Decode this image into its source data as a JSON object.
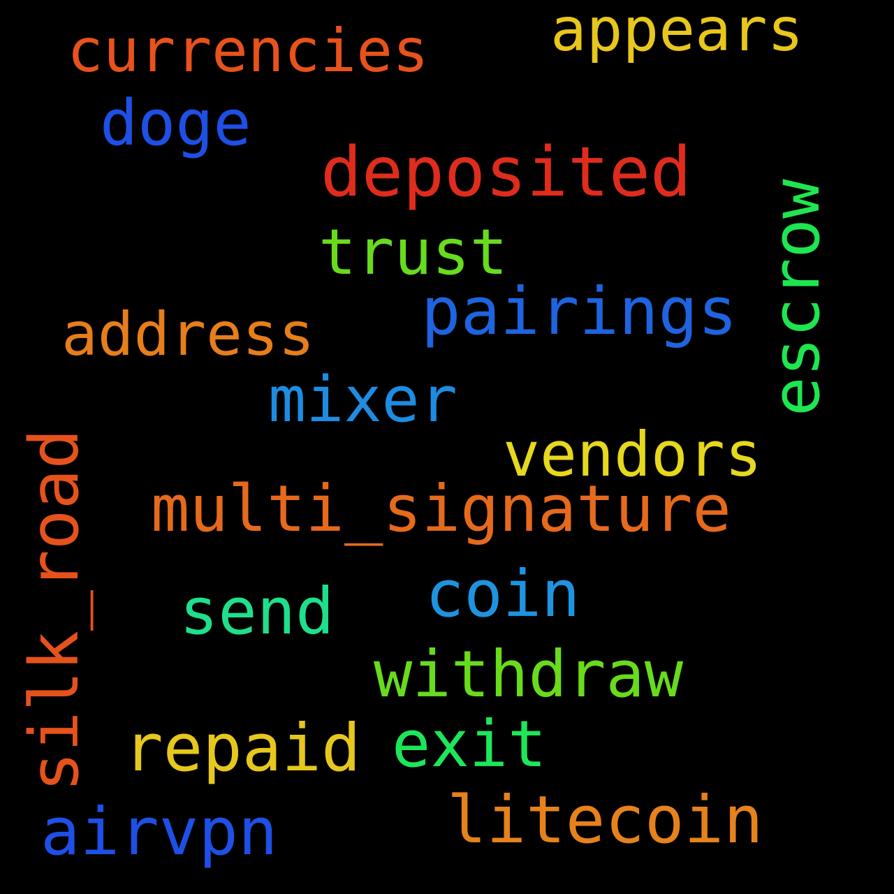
{
  "canvas": {
    "background": "#000000"
  },
  "words": {
    "appears": {
      "text": "appears",
      "color": "#e8c61c"
    },
    "currencies": {
      "text": "currencies",
      "color": "#e8521c"
    },
    "doge": {
      "text": "doge",
      "color": "#1e50e6"
    },
    "deposited": {
      "text": "deposited",
      "color": "#e02c1c"
    },
    "trust": {
      "text": "trust",
      "color": "#68dc1c"
    },
    "pairings": {
      "text": "pairings",
      "color": "#1e64e0"
    },
    "address": {
      "text": "address",
      "color": "#e67e1c"
    },
    "mixer": {
      "text": "mixer",
      "color": "#1e8ce0"
    },
    "vendors": {
      "text": "vendors",
      "color": "#e6d81c"
    },
    "multi": {
      "text": "multi_signature",
      "color": "#e66a1c"
    },
    "coin": {
      "text": "coin",
      "color": "#1e94e0"
    },
    "send": {
      "text": "send",
      "color": "#1ee08c"
    },
    "withdraw": {
      "text": "withdraw",
      "color": "#68dc1c"
    },
    "exit": {
      "text": "exit",
      "color": "#1ee65a"
    },
    "repaid": {
      "text": "repaid",
      "color": "#e6c81c"
    },
    "litecoin": {
      "text": "litecoin",
      "color": "#e6821c"
    },
    "airvpn": {
      "text": "airvpn",
      "color": "#1e50e6"
    },
    "escrow": {
      "text": "escrow",
      "color": "#1ee650"
    },
    "silk_road": {
      "text": "silk_road",
      "color": "#e6521c"
    }
  }
}
